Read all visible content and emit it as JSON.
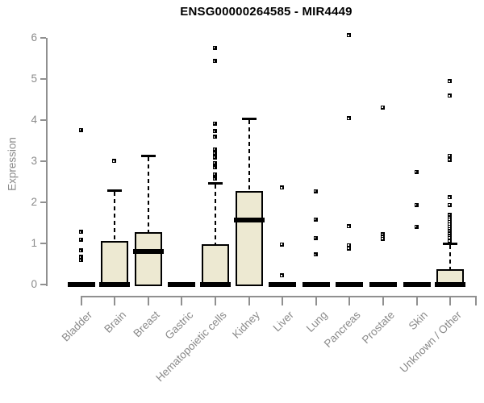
{
  "chart_data": {
    "type": "boxplot",
    "title": "ENSG00000264585 - MIR4449",
    "ylabel": "Expression",
    "xlabel": "",
    "ylim": [
      0,
      6
    ],
    "yticks": [
      0,
      1,
      2,
      3,
      4,
      5,
      6
    ],
    "grid": false,
    "legend": "none",
    "categories": [
      "Bladder",
      "Brain",
      "Breast",
      "Gastric",
      "Hematopoietic cells",
      "Kidney",
      "Liver",
      "Lung",
      "Pancreas",
      "Prostate",
      "Skin",
      "Unknown / Other"
    ],
    "series": [
      {
        "category": "Bladder",
        "q1": 0,
        "median": 0,
        "q3": 0,
        "whisker_low": 0,
        "whisker_high": 0,
        "outliers": [
          3.75,
          1.27,
          1.08,
          0.82,
          0.66,
          0.58
        ]
      },
      {
        "category": "Brain",
        "q1": 0,
        "median": 0,
        "q3": 1.06,
        "whisker_low": 0,
        "whisker_high": 2.29,
        "outliers": [
          3.0
        ]
      },
      {
        "category": "Breast",
        "q1": 0,
        "median": 0.8,
        "q3": 1.27,
        "whisker_low": 0,
        "whisker_high": 3.13,
        "outliers": []
      },
      {
        "category": "Gastric",
        "q1": 0,
        "median": 0,
        "q3": 0,
        "whisker_low": 0,
        "whisker_high": 0,
        "outliers": []
      },
      {
        "category": "Hematopoietic cells",
        "q1": 0,
        "median": 0,
        "q3": 0.98,
        "whisker_low": 0,
        "whisker_high": 2.47,
        "outliers": [
          5.75,
          5.43,
          3.91,
          3.72,
          3.58,
          3.28,
          3.18,
          3.08,
          2.95,
          2.84,
          2.67,
          2.56
        ]
      },
      {
        "category": "Kidney",
        "q1": 0,
        "median": 1.57,
        "q3": 2.27,
        "whisker_low": 0,
        "whisker_high": 4.03,
        "outliers": []
      },
      {
        "category": "Liver",
        "q1": 0,
        "median": 0,
        "q3": 0,
        "whisker_low": 0,
        "whisker_high": 0,
        "outliers": [
          2.35,
          0.97,
          0.21
        ]
      },
      {
        "category": "Lung",
        "q1": 0,
        "median": 0,
        "q3": 0,
        "whisker_low": 0,
        "whisker_high": 0,
        "outliers": [
          2.26,
          1.57,
          1.12,
          0.72
        ]
      },
      {
        "category": "Pancreas",
        "q1": 0,
        "median": 0,
        "q3": 0,
        "whisker_low": 0,
        "whisker_high": 0,
        "outliers": [
          6.05,
          4.03,
          1.41,
          0.95,
          0.87
        ]
      },
      {
        "category": "Prostate",
        "q1": 0,
        "median": 0,
        "q3": 0,
        "whisker_low": 0,
        "whisker_high": 0,
        "outliers": [
          4.3,
          1.21,
          1.15,
          1.1
        ]
      },
      {
        "category": "Skin",
        "q1": 0,
        "median": 0,
        "q3": 0,
        "whisker_low": 0,
        "whisker_high": 0,
        "outliers": [
          2.73,
          1.93,
          1.4
        ]
      },
      {
        "category": "Unknown / Other",
        "q1": 0,
        "median": 0,
        "q3": 0.37,
        "whisker_low": 0,
        "whisker_high": 1.0,
        "outliers": [
          4.94,
          4.58,
          3.12,
          3.02,
          2.11,
          1.93,
          1.68,
          1.62,
          1.57,
          1.51,
          1.46,
          1.4,
          1.34,
          1.29,
          1.23,
          1.17,
          1.12,
          1.05
        ]
      }
    ],
    "colors": {
      "box_fill": "#EDE9D2",
      "box_border": "#000000",
      "median": "#000000",
      "outlier": "#000000",
      "axis": "#909090",
      "tick_text": "#8A8A8A",
      "title_text": "#000000"
    }
  }
}
